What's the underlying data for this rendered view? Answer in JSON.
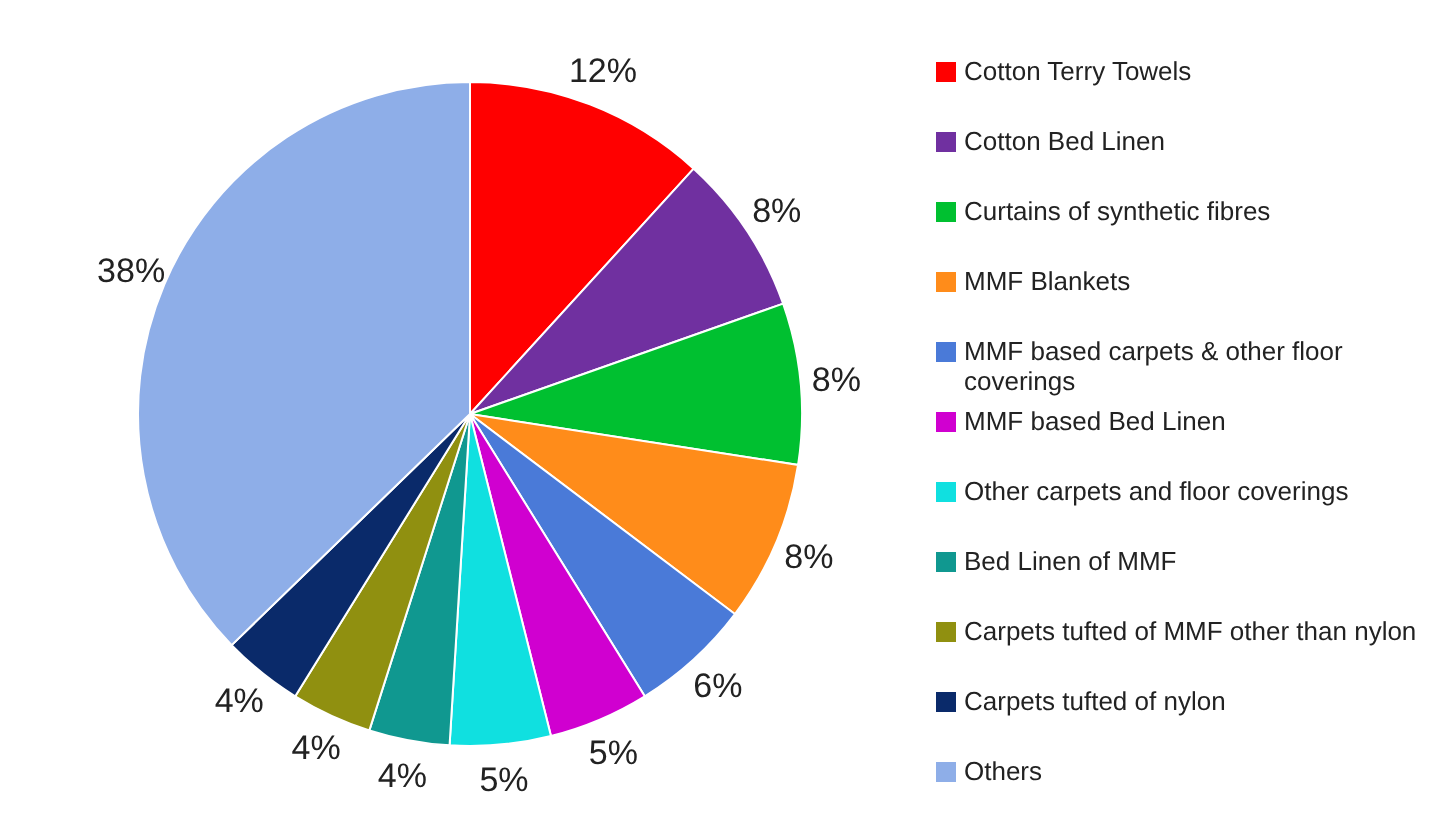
{
  "chart_data": {
    "type": "pie",
    "categories": [
      "Cotton Terry Towels",
      "Cotton Bed Linen",
      "Curtains of synthetic fibres",
      "MMF Blankets",
      "MMF based carpets & other floor coverings",
      "MMF based Bed Linen",
      "Other carpets and floor coverings",
      "Bed Linen of MMF",
      "Carpets tufted of MMF other than nylon",
      "Carpets tufted of nylon",
      "Others"
    ],
    "values": [
      12,
      8,
      8,
      8,
      6,
      5,
      5,
      4,
      4,
      4,
      38
    ],
    "value_labels": [
      "12%",
      "8%",
      "8%",
      "8%",
      "6%",
      "5%",
      "5%",
      "4%",
      "4%",
      "4%",
      "38%"
    ],
    "colors": [
      "#ff0000",
      "#7030a0",
      "#00c030",
      "#ff8c1a",
      "#4a7ad8",
      "#d000d0",
      "#10e0e0",
      "#109890",
      "#909010",
      "#0a2a6a",
      "#8eaee8"
    ],
    "legend": "right"
  }
}
